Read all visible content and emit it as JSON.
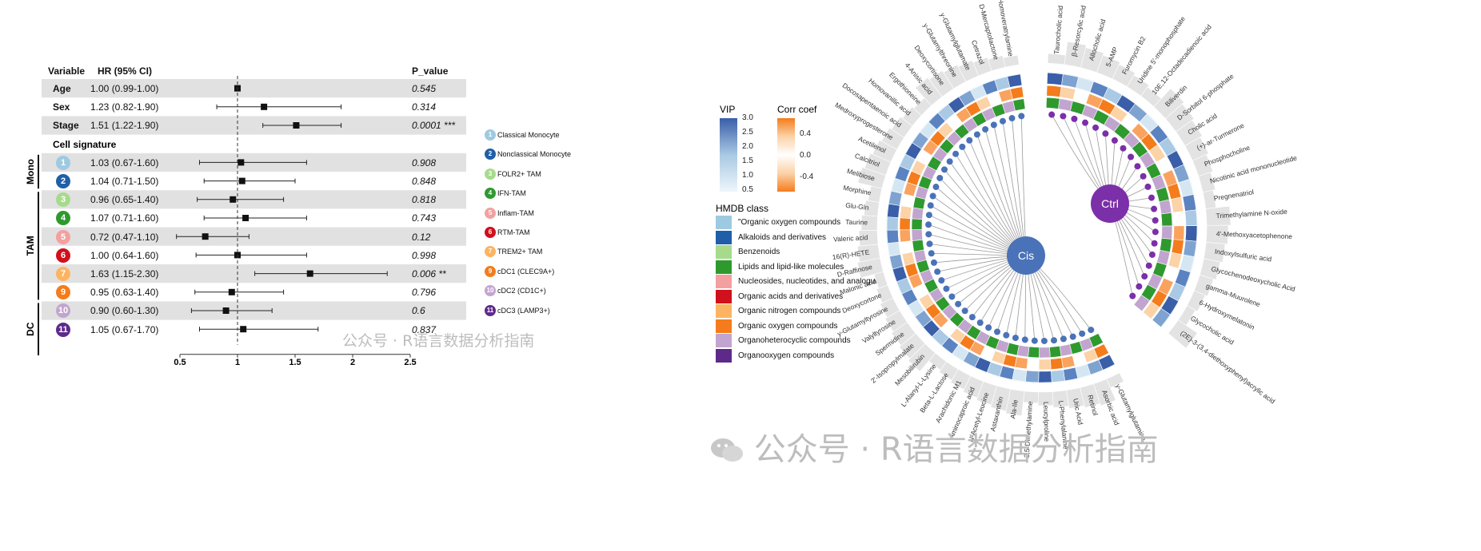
{
  "forest": {
    "headers": {
      "variable": "Variable",
      "hr": "HR (95% CI)",
      "p": "P_value"
    },
    "cell_signature_label": "Cell signature",
    "groups": [
      {
        "label": "Mono",
        "from": 4,
        "to": 5
      },
      {
        "label": "TAM",
        "from": 6,
        "to": 11
      },
      {
        "label": "DC",
        "from": 12,
        "to": 14
      }
    ],
    "rows": [
      {
        "label": "Age",
        "hr": "1.00 (0.99-1.00)",
        "p": "0.545",
        "est": 1.0,
        "lo": 0.99,
        "hi": 1.0,
        "shade": true
      },
      {
        "label": "Sex",
        "hr": "1.23 (0.82-1.90)",
        "p": "0.314",
        "est": 1.23,
        "lo": 0.82,
        "hi": 1.9,
        "shade": false
      },
      {
        "label": "Stage",
        "hr": "1.51 (1.22-1.90)",
        "p": "0.0001 ***",
        "est": 1.51,
        "lo": 1.22,
        "hi": 1.9,
        "shade": true
      },
      {
        "label": "",
        "hr": "",
        "p": "",
        "header": true
      },
      {
        "badge": "1",
        "color": "#9ecae1",
        "hr": "1.03 (0.67-1.60)",
        "p": "0.908",
        "est": 1.03,
        "lo": 0.67,
        "hi": 1.6,
        "shade": true
      },
      {
        "badge": "2",
        "color": "#1f5fa8",
        "hr": "1.04 (0.71-1.50)",
        "p": "0.848",
        "est": 1.04,
        "lo": 0.71,
        "hi": 1.5,
        "shade": false
      },
      {
        "badge": "3",
        "color": "#a6db8c",
        "hr": "0.96 (0.65-1.40)",
        "p": "0.818",
        "est": 0.96,
        "lo": 0.65,
        "hi": 1.4,
        "shade": true
      },
      {
        "badge": "4",
        "color": "#2e9a2e",
        "hr": "1.07 (0.71-1.60)",
        "p": "0.743",
        "est": 1.07,
        "lo": 0.71,
        "hi": 1.6,
        "shade": false
      },
      {
        "badge": "5",
        "color": "#f4a0a0",
        "hr": "0.72 (0.47-1.10)",
        "p": "0.12",
        "est": 0.72,
        "lo": 0.47,
        "hi": 1.1,
        "shade": true
      },
      {
        "badge": "6",
        "color": "#d0101c",
        "hr": "1.00 (0.64-1.60)",
        "p": "0.998",
        "est": 1.0,
        "lo": 0.64,
        "hi": 1.6,
        "shade": false
      },
      {
        "badge": "7",
        "color": "#fdb462",
        "hr": "1.63 (1.15-2.30)",
        "p": "0.006 **",
        "est": 1.63,
        "lo": 1.15,
        "hi": 2.3,
        "shade": true
      },
      {
        "badge": "9",
        "color": "#f47c1c",
        "hr": "0.95 (0.63-1.40)",
        "p": "0.796",
        "est": 0.95,
        "lo": 0.63,
        "hi": 1.4,
        "shade": false
      },
      {
        "badge": "10",
        "color": "#c2a5cf",
        "hr": "0.90 (0.60-1.30)",
        "p": "0.6",
        "est": 0.9,
        "lo": 0.6,
        "hi": 1.3,
        "shade": true
      },
      {
        "badge": "11",
        "color": "#5e2a8a",
        "hr": "1.05 (0.67-1.70)",
        "p": "0.837",
        "est": 1.05,
        "lo": 0.67,
        "hi": 1.7,
        "shade": false
      }
    ],
    "axis": {
      "ticks": [
        "0.5",
        "1",
        "1.5",
        "2",
        "2.5"
      ],
      "min": 0.5,
      "max": 2.5,
      "ref": 1
    },
    "legend": [
      {
        "badge": "1",
        "color": "#9ecae1",
        "label": "Classical Monocyte"
      },
      {
        "badge": "2",
        "color": "#1f5fa8",
        "label": "Nonclassical Monocyte"
      },
      {
        "badge": "3",
        "color": "#a6db8c",
        "label": "FOLR2+ TAM"
      },
      {
        "badge": "4",
        "color": "#2e9a2e",
        "label": "IFN-TAM"
      },
      {
        "badge": "5",
        "color": "#f4a0a0",
        "label": "Inflam-TAM"
      },
      {
        "badge": "6",
        "color": "#d0101c",
        "label": "RTM-TAM"
      },
      {
        "badge": "7",
        "color": "#fdb462",
        "label": "TREM2+ TAM"
      },
      {
        "badge": "9",
        "color": "#f47c1c",
        "label": "cDC1 (CLEC9A+)"
      },
      {
        "badge": "10",
        "color": "#c2a5cf",
        "label": "cDC2 (CD1C+)"
      },
      {
        "badge": "11",
        "color": "#5e2a8a",
        "label": "cDC3 (LAMP3+)"
      }
    ]
  },
  "circos": {
    "vip_title": "VIP",
    "vip_ticks": [
      "3.0",
      "2.5",
      "2.0",
      "1.5",
      "1.0",
      "0.5"
    ],
    "corr_title": "Corr coef",
    "corr_ticks": [
      "0.4",
      "0.0",
      "-0.4"
    ],
    "hmdb_title": "HMDB class",
    "hmdb_classes": [
      {
        "label": "\"Organic oxygen compounds",
        "color": "#9ecae1"
      },
      {
        "label": "Alkaloids and derivatives",
        "color": "#1f5fa8"
      },
      {
        "label": "Benzenoids",
        "color": "#a6db8c"
      },
      {
        "label": "Lipids and lipid-like molecules",
        "color": "#2e9a2e"
      },
      {
        "label": "Nucleosides, nucleotides, and analogues",
        "color": "#f4a0a0"
      },
      {
        "label": "Organic acids and derivatives",
        "color": "#d0101c"
      },
      {
        "label": "Organic nitrogen compounds",
        "color": "#fdb462"
      },
      {
        "label": "Organic oxygen compounds",
        "color": "#f47c1c"
      },
      {
        "label": "Organoheterocyclic compounds",
        "color": "#c2a5cf"
      },
      {
        "label": "Organooxygen compounds",
        "color": "#5e2a8a"
      }
    ],
    "cis_label": "Cis",
    "ctrl_label": "Ctrl",
    "cis_color": "#4a72b8",
    "ctrl_color": "#7b2fa8",
    "cis_metabolites": [
      "y-Glutamylglutamine",
      "Asorbic acid",
      "Retinol",
      "Uric Acid",
      "L-Phenylalanine",
      "Leucylproline",
      "2,5-Dimethylamine",
      "Ala-Ile",
      "Astaxanthin",
      "N-Acetyl-Leucine",
      "Aminocaproic acid",
      "Arachidonic M1",
      "Beta-L-Lactose",
      "L-Alanyl-L-Lysine",
      "Mesobilirubin",
      "2'-Isopropylmalate",
      "Spermidine",
      "Valyltyrosine",
      "y-Glutamyltyrosine",
      "Deoxycortone",
      "Malonic acid",
      "D-Raffinose",
      "16(R)-HETE",
      "Valeric acid",
      "Taurine",
      "Glu-Gln",
      "Morphine",
      "Melibiose",
      "Calcitriol",
      "Acetilenol",
      "Medroxyprogesterone",
      "Docosapentaenoic acid",
      "Homovanillic acid",
      "Ergothioneine",
      "4-Anisic acid",
      "Deoxycortisone",
      "y-Glutamylthreonine",
      "y-Glutamylglutamate",
      "Cetrazol",
      "D-Mercaptolactone",
      "Homoveratrylamine"
    ],
    "ctrl_metabolites": [
      "Taurocholic acid",
      "β-Resorcylic acid",
      "Allocholic acid",
      "5-AMP",
      "Furomycin B2",
      "Uridine 5'-monophosphate",
      "10E,12-Octadecadienoic acid",
      "Biliverdin",
      "D-Sorbitol 6-phosphate",
      "Cholic acid",
      "(+)-ar-Turmerone",
      "Phosphocholine",
      "Nicotinic acid mononucleotide",
      "Pregnenatriol",
      "Trimethylamine N-oxide",
      "4'-Methoxyacetophenone",
      "Indoxylsulfuric acid",
      "Glycochenodeoxycholic Acid",
      "gamma-Muurolene",
      "6-Hydroxymelatonin",
      "Glycocholic acid",
      "(2E)-3-(3,4-diethoxyphenyl)acrylic acid"
    ]
  },
  "watermark": {
    "small": "公众号 · R语言数据分析指南",
    "large": "公众号 · R语言数据分析指南"
  }
}
